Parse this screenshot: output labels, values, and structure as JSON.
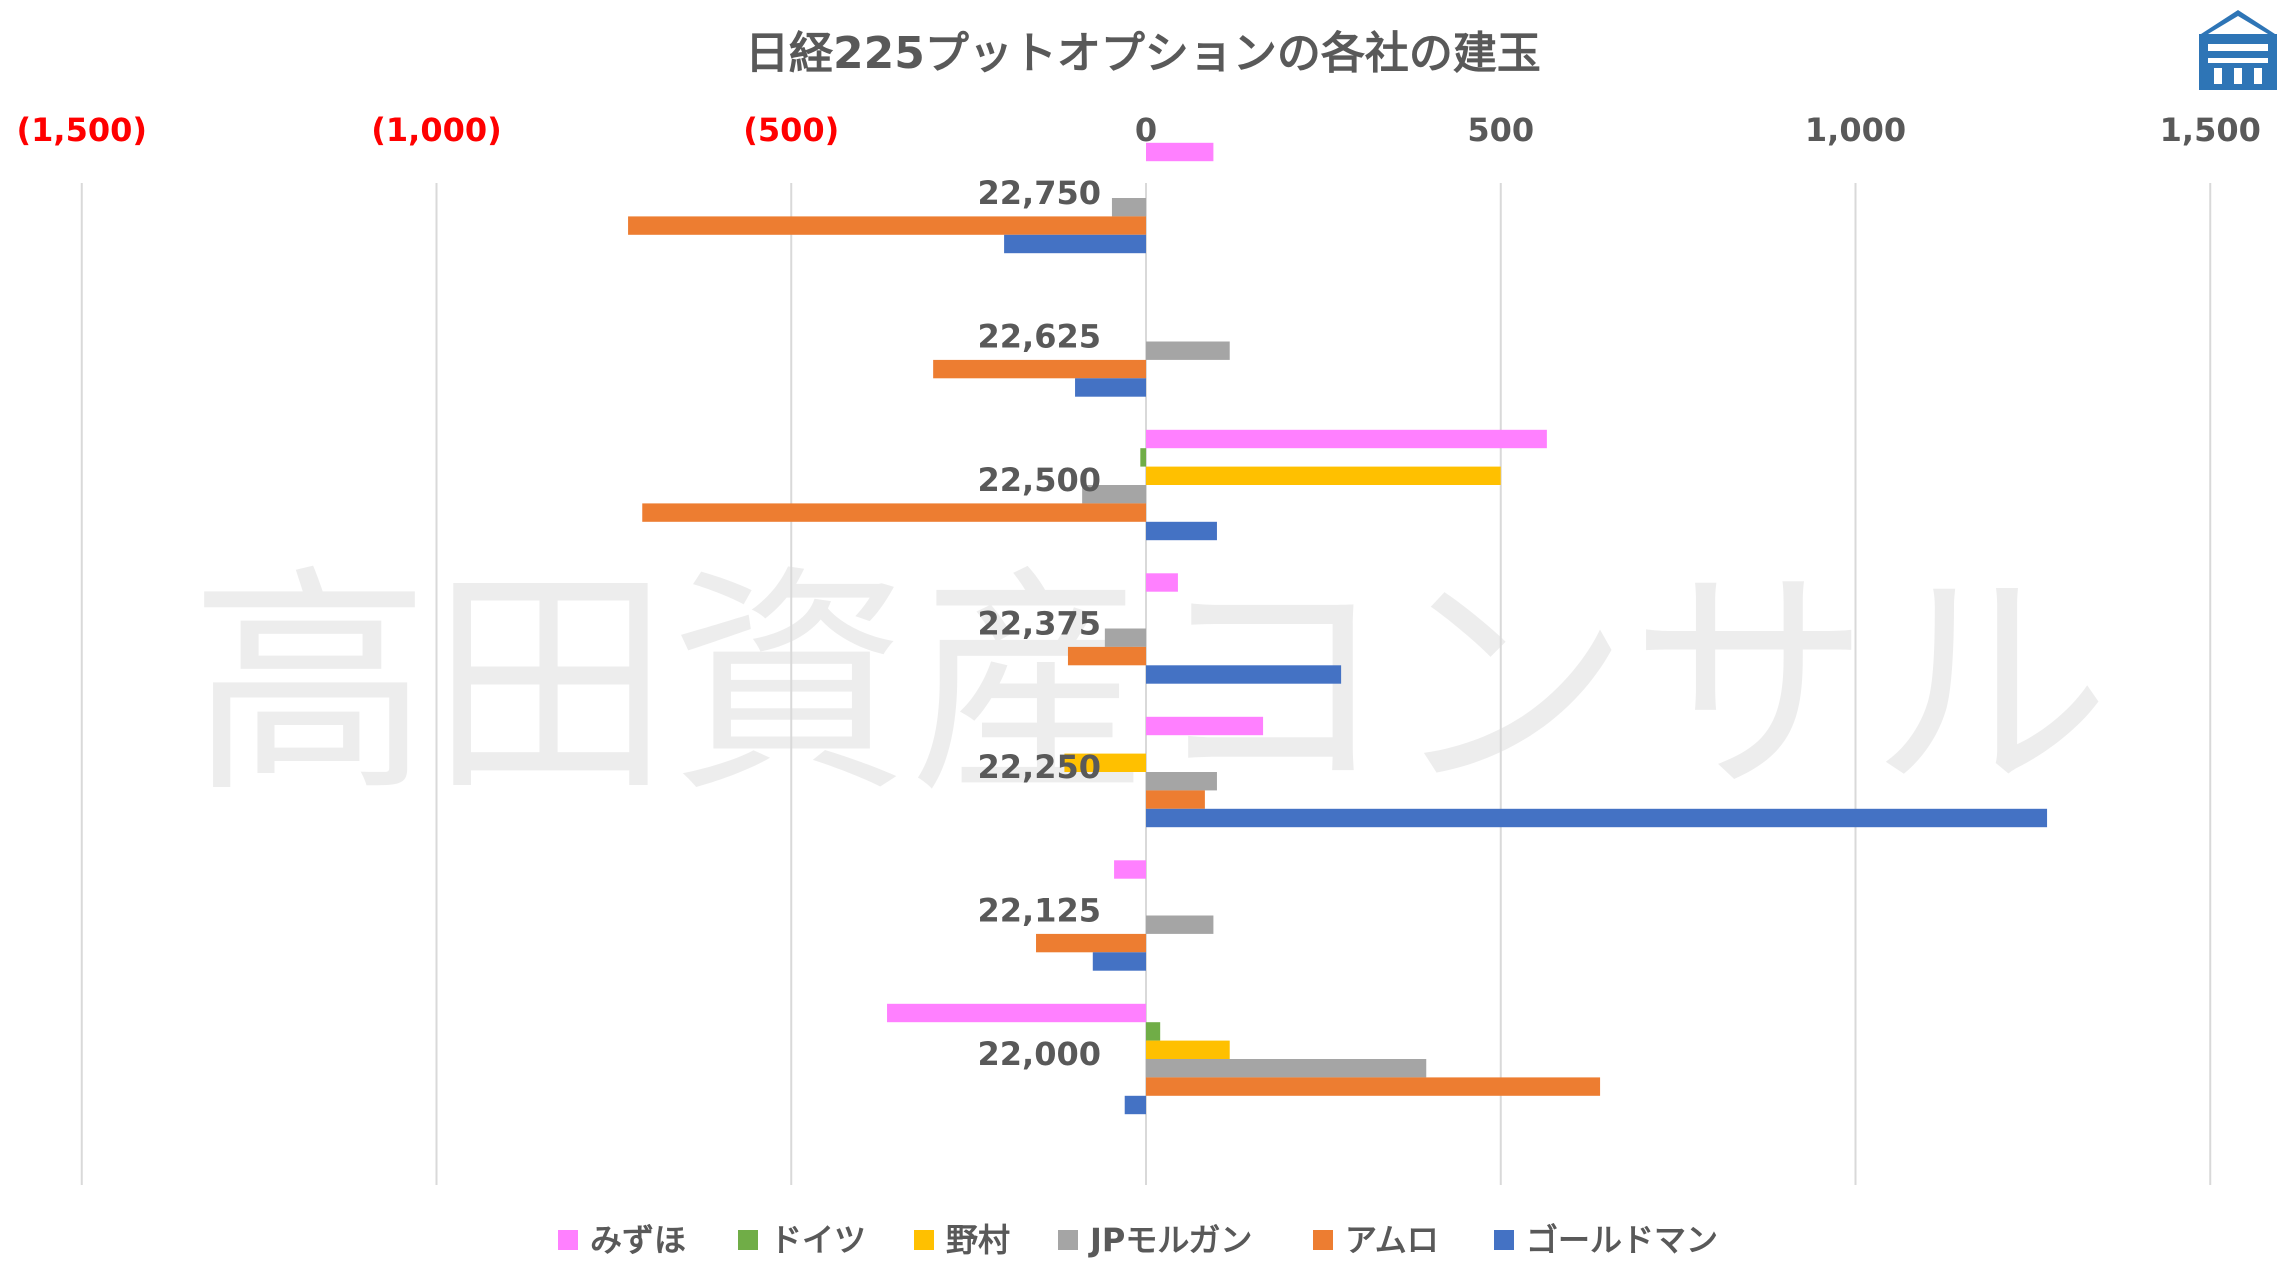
{
  "chart_data": {
    "type": "bar",
    "orientation": "horizontal",
    "title": "日経225プットオプションの各社の建玉",
    "xlim": [
      -1500,
      1500
    ],
    "x_ticks": [
      -1500,
      -1000,
      -500,
      0,
      500,
      1000,
      1500
    ],
    "x_tick_labels": [
      "(1,500)",
      "(1,000)",
      "(500)",
      "0",
      "500",
      "1,000",
      "1,500"
    ],
    "grid": true,
    "legend_position": "bottom",
    "categories": [
      "22,750",
      "22,625",
      "22,500",
      "22,375",
      "22,250",
      "22,125",
      "22,000"
    ],
    "series": [
      {
        "name": "みずほ",
        "color": "#FF80FF",
        "values": [
          95,
          0,
          565,
          45,
          165,
          -45,
          -365
        ]
      },
      {
        "name": "ドイツ",
        "color": "#70AD47",
        "values": [
          0,
          0,
          -8,
          0,
          0,
          0,
          20
        ]
      },
      {
        "name": "野村",
        "color": "#FFC000",
        "values": [
          0,
          0,
          500,
          0,
          -115,
          0,
          118
        ]
      },
      {
        "name": "JPモルガン",
        "color": "#A5A5A5",
        "values": [
          -48,
          118,
          -90,
          -58,
          100,
          95,
          395
        ]
      },
      {
        "name": "アムロ",
        "color": "#ED7D31",
        "values": [
          -730,
          -300,
          -710,
          -110,
          83,
          -155,
          640
        ]
      },
      {
        "name": "ゴールドマン",
        "color": "#4472C4",
        "values": [
          -200,
          -100,
          100,
          275,
          1270,
          -75,
          -30
        ]
      }
    ]
  },
  "colors": {
    "negative_tick": "#FF0000",
    "positive_tick": "#595959",
    "grid": "#D9D9D9"
  },
  "watermark": {
    "text": "高田資産コンサル"
  },
  "logo": {
    "icon": "building-logo-icon",
    "color": "#2E75B6"
  }
}
